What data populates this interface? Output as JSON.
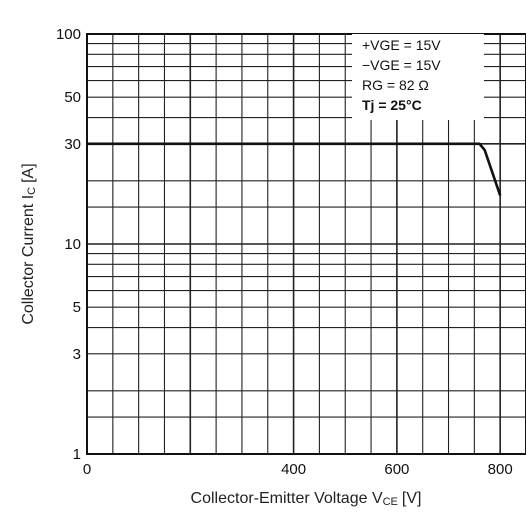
{
  "chart_data": {
    "type": "line",
    "xlabel": "Collector-Emitter Voltage V",
    "xlabel_sub": "CE",
    "xlabel_unit": "[V]",
    "ylabel": "Collector Current I",
    "ylabel_sub": "C",
    "ylabel_unit": "[A]",
    "xlim": [
      0,
      850
    ],
    "ylim": [
      1,
      100
    ],
    "yscale": "log",
    "grid": true,
    "x_ticks": [
      {
        "value": 0,
        "label": "0"
      },
      {
        "value": 400,
        "label": "400"
      },
      {
        "value": 600,
        "label": "600"
      },
      {
        "value": 800,
        "label": "800"
      }
    ],
    "y_ticks": [
      {
        "value": 1,
        "label": "1"
      },
      {
        "value": 3,
        "label": "3"
      },
      {
        "value": 5,
        "label": "5"
      },
      {
        "value": 10,
        "label": "10"
      },
      {
        "value": 30,
        "label": "30"
      },
      {
        "value": 50,
        "label": "50"
      },
      {
        "value": 100,
        "label": "100"
      }
    ],
    "series": [
      {
        "x": [
          0,
          760,
          770,
          800
        ],
        "y": [
          30,
          30,
          28,
          17
        ]
      }
    ],
    "annotation": [
      {
        "text": "+VGE = 15V",
        "bold": false
      },
      {
        "text": "−VGE = 15V",
        "bold": false
      },
      {
        "text": "RG = 82 Ω",
        "bold": false
      },
      {
        "text": "Tj = 25°C",
        "bold": true
      }
    ]
  }
}
